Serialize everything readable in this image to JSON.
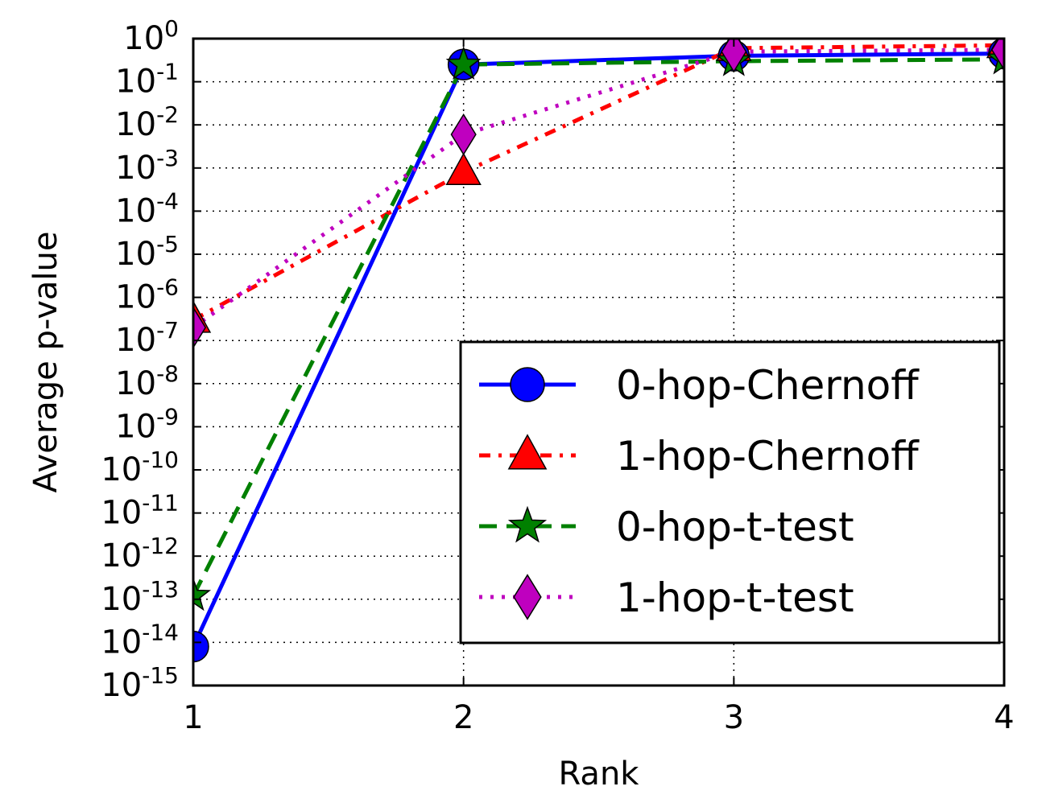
{
  "chart_data": {
    "type": "line",
    "xlabel": "Rank",
    "ylabel": "Average p-value",
    "x_ticks": [
      "1",
      "2",
      "3",
      "4"
    ],
    "y_tick_labels": [
      {
        "exp": -15,
        "base": "10",
        "sup": "-15"
      },
      {
        "exp": -14,
        "base": "10",
        "sup": "-14"
      },
      {
        "exp": -13,
        "base": "10",
        "sup": "-13"
      },
      {
        "exp": -12,
        "base": "10",
        "sup": "-12"
      },
      {
        "exp": -11,
        "base": "10",
        "sup": "-11"
      },
      {
        "exp": -10,
        "base": "10",
        "sup": "-10"
      },
      {
        "exp": -9,
        "base": "10",
        "sup": "-9"
      },
      {
        "exp": -8,
        "base": "10",
        "sup": "-8"
      },
      {
        "exp": -7,
        "base": "10",
        "sup": "-7"
      },
      {
        "exp": -6,
        "base": "10",
        "sup": "-6"
      },
      {
        "exp": -5,
        "base": "10",
        "sup": "-5"
      },
      {
        "exp": -4,
        "base": "10",
        "sup": "-4"
      },
      {
        "exp": -3,
        "base": "10",
        "sup": "-3"
      },
      {
        "exp": -2,
        "base": "10",
        "sup": "-2"
      },
      {
        "exp": -1,
        "base": "10",
        "sup": "-1"
      },
      {
        "exp": 0,
        "base": "10",
        "sup": "0"
      }
    ],
    "xlim": [
      1,
      4
    ],
    "ylim": [
      1e-15,
      1
    ],
    "yscale": "log",
    "grid": true,
    "legend_position": "lower-right",
    "series": [
      {
        "name": "0-hop-Chernoff",
        "color": "#0000ff",
        "dash": "solid",
        "marker": "circle",
        "x": [
          1,
          2,
          3,
          4
        ],
        "y": [
          8e-15,
          0.25,
          0.4,
          0.45
        ]
      },
      {
        "name": "1-hop-Chernoff",
        "color": "#ff0000",
        "dash": "dashdot",
        "marker": "triangle",
        "x": [
          1,
          2,
          3,
          4
        ],
        "y": [
          3e-07,
          0.0008,
          0.6,
          0.7
        ]
      },
      {
        "name": "0-hop-t-test",
        "color": "#008000",
        "dash": "dashed",
        "marker": "star",
        "x": [
          1,
          2,
          3,
          4
        ],
        "y": [
          1.2e-13,
          0.25,
          0.3,
          0.33
        ]
      },
      {
        "name": "1-hop-t-test",
        "color": "#bf00bf",
        "dash": "dotted",
        "marker": "diamond",
        "x": [
          1,
          2,
          3,
          4
        ],
        "y": [
          2e-07,
          0.006,
          0.5,
          0.55
        ]
      }
    ]
  }
}
